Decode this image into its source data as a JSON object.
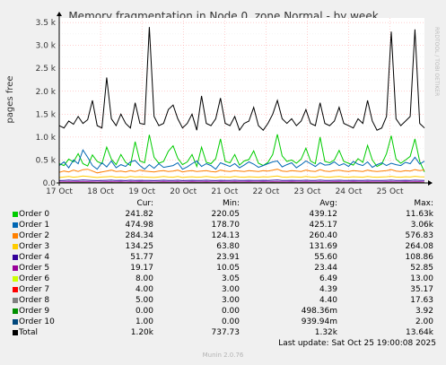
{
  "chart_data": {
    "type": "line",
    "title": "Memory fragmentation in Node 0, zone Normal - by week",
    "ylabel": "pages free",
    "xlabel": "",
    "side_label": "RRDTOOL / TOBI OETIKER",
    "ylim": [
      0,
      3600
    ],
    "yticks": [
      0,
      500,
      1000,
      1500,
      2000,
      2500,
      3000,
      3500
    ],
    "ytick_labels": [
      "0.0",
      "0.5 k",
      "1.0 k",
      "1.5 k",
      "2.0 k",
      "2.5 k",
      "3.0 k",
      "3.5 k"
    ],
    "x_range": [
      "2025-10-17 00:00",
      "2025-10-25 20:00"
    ],
    "xtick_labels": [
      "17 Oct",
      "18 Oct",
      "19 Oct",
      "20 Oct",
      "21 Oct",
      "22 Oct",
      "23 Oct",
      "24 Oct",
      "25 Oct"
    ],
    "grid": true,
    "legend_placement": "bottom",
    "legend_headers": [
      "Cur:",
      "Min:",
      "Avg:",
      "Max:"
    ],
    "series": [
      {
        "name": "Order 0",
        "color": "#00cc00",
        "cur": "241.82",
        "min": "220.05",
        "avg": "439.12",
        "max": "11.63k",
        "values": [
          420,
          380,
          520,
          460,
          640,
          420,
          370,
          610,
          470,
          420,
          780,
          520,
          400,
          620,
          450,
          380,
          900,
          480,
          440,
          1050,
          560,
          430,
          470,
          690,
          810,
          540,
          400,
          460,
          620,
          360,
          780,
          450,
          420,
          530,
          960,
          470,
          440,
          620,
          390,
          480,
          510,
          700,
          430,
          380,
          450,
          620,
          1060,
          590,
          470,
          500,
          430,
          520,
          760,
          480,
          420,
          1000,
          470,
          440,
          500,
          710,
          470,
          430,
          390,
          530,
          450,
          820,
          500,
          360,
          410,
          640,
          1030,
          520,
          430,
          500,
          580,
          960,
          470,
          240
        ]
      },
      {
        "name": "Order 1",
        "color": "#0066b3",
        "cur": "474.98",
        "min": "178.70",
        "avg": "425.17",
        "max": "3.06k",
        "values": [
          380,
          460,
          330,
          500,
          420,
          720,
          560,
          380,
          300,
          440,
          350,
          480,
          330,
          400,
          360,
          460,
          490,
          380,
          300,
          400,
          320,
          420,
          340,
          360,
          380,
          440,
          300,
          350,
          420,
          480,
          360,
          420,
          380,
          300,
          440,
          400,
          360,
          420,
          330,
          390,
          460,
          410,
          340,
          380,
          420,
          460,
          480,
          350,
          400,
          440,
          330,
          400,
          480,
          420,
          360,
          440,
          390,
          400,
          460,
          380,
          420,
          360,
          470,
          410,
          380,
          460,
          340,
          400,
          440,
          380,
          430,
          400,
          380,
          450,
          420,
          560,
          410,
          475
        ]
      },
      {
        "name": "Order 2",
        "color": "#ff8000",
        "cur": "284.34",
        "min": "124.13",
        "avg": "260.40",
        "max": "576.83",
        "values": [
          230,
          260,
          240,
          280,
          250,
          290,
          300,
          260,
          220,
          240,
          260,
          280,
          250,
          260,
          240,
          270,
          250,
          280,
          260,
          250,
          240,
          260,
          270,
          250,
          260,
          280,
          240,
          260,
          270,
          250,
          260,
          270,
          250,
          240,
          280,
          260,
          250,
          270,
          260,
          250,
          270,
          260,
          250,
          270,
          260,
          280,
          300,
          260,
          250,
          270,
          260,
          250,
          280,
          260,
          250,
          290,
          260,
          250,
          270,
          280,
          260,
          250,
          270,
          260,
          250,
          280,
          260,
          250,
          260,
          270,
          290,
          260,
          250,
          270,
          260,
          290,
          270,
          284
        ]
      },
      {
        "name": "Order 3",
        "color": "#ffcc00",
        "cur": "134.25",
        "min": "63.80",
        "avg": "131.69",
        "max": "264.08",
        "values": [
          120,
          130,
          140,
          125,
          135,
          150,
          140,
          130,
          120,
          130,
          135,
          140,
          125,
          130,
          120,
          140,
          130,
          135,
          130,
          125,
          120,
          130,
          140,
          130,
          125,
          140,
          120,
          130,
          135,
          125,
          130,
          140,
          130,
          120,
          135,
          130,
          125,
          140,
          130,
          125,
          135,
          130,
          125,
          135,
          130,
          140,
          150,
          130,
          125,
          135,
          130,
          125,
          140,
          130,
          125,
          145,
          130,
          125,
          135,
          140,
          130,
          125,
          135,
          130,
          125,
          140,
          130,
          125,
          130,
          135,
          145,
          130,
          125,
          135,
          130,
          145,
          135,
          134
        ]
      },
      {
        "name": "Order 4",
        "color": "#330099",
        "cur": "51.77",
        "min": "23.91",
        "avg": "55.60",
        "max": "108.86",
        "values": [
          50,
          55,
          60,
          52,
          56,
          62,
          58,
          54,
          50,
          55,
          57,
          60,
          52,
          56,
          50,
          58,
          54,
          56,
          55,
          52,
          50,
          55,
          58,
          54,
          52,
          58,
          50,
          54,
          56,
          52,
          55,
          58,
          54,
          50,
          56,
          55,
          52,
          58,
          55,
          52,
          56,
          55,
          52,
          56,
          55,
          58,
          62,
          55,
          52,
          56,
          55,
          52,
          58,
          55,
          52,
          60,
          55,
          52,
          56,
          58,
          55,
          52,
          56,
          55,
          52,
          58,
          55,
          52,
          55,
          56,
          60,
          55,
          52,
          56,
          55,
          60,
          56,
          52
        ]
      },
      {
        "name": "Order 5",
        "color": "#990099",
        "cur": "19.17",
        "min": "10.05",
        "avg": "23.44",
        "max": "52.85",
        "values": [
          20,
          22,
          24,
          21,
          23,
          26,
          24,
          22,
          20,
          22,
          23,
          25,
          21,
          23,
          20,
          24,
          22,
          23,
          22,
          21,
          20,
          22,
          24,
          22,
          21,
          24,
          20,
          22,
          23,
          21,
          22,
          24,
          22,
          20,
          23,
          22,
          21,
          24,
          22,
          21,
          23,
          22,
          21,
          23,
          22,
          24,
          26,
          22,
          21,
          23,
          22,
          21,
          24,
          22,
          21,
          25,
          22,
          21,
          23,
          24,
          22,
          21,
          23,
          22,
          21,
          24,
          22,
          21,
          22,
          23,
          25,
          22,
          21,
          23,
          22,
          25,
          23,
          19
        ]
      },
      {
        "name": "Order 6",
        "color": "#ccff00",
        "cur": "8.00",
        "min": "3.05",
        "avg": "6.49",
        "max": "13.00",
        "values": [
          6,
          7,
          6,
          7,
          6,
          8,
          7,
          6,
          6,
          7,
          6,
          7,
          6,
          7,
          6,
          7,
          6,
          7,
          6,
          6,
          6,
          7,
          7,
          6,
          6,
          7,
          6,
          6,
          7,
          6,
          6,
          7,
          6,
          6,
          7,
          6,
          6,
          7,
          6,
          6,
          7,
          6,
          6,
          7,
          6,
          7,
          8,
          6,
          6,
          7,
          6,
          6,
          7,
          6,
          6,
          7,
          6,
          6,
          7,
          7,
          6,
          6,
          7,
          6,
          6,
          7,
          6,
          6,
          6,
          7,
          7,
          6,
          6,
          7,
          6,
          7,
          7,
          8
        ]
      },
      {
        "name": "Order 7",
        "color": "#ff0000",
        "cur": "4.00",
        "min": "3.00",
        "avg": "4.39",
        "max": "35.17",
        "values": [
          4,
          4,
          5,
          4,
          4,
          5,
          4,
          4,
          4,
          4,
          5,
          4,
          4,
          4,
          4,
          5,
          4,
          4,
          4,
          4,
          4,
          4,
          5,
          4,
          4,
          5,
          4,
          4,
          4,
          4,
          4,
          5,
          4,
          4,
          4,
          4,
          4,
          5,
          4,
          4,
          4,
          4,
          4,
          5,
          4,
          4,
          5,
          4,
          4,
          4,
          4,
          4,
          5,
          4,
          4,
          5,
          4,
          4,
          4,
          5,
          4,
          4,
          4,
          4,
          4,
          5,
          4,
          4,
          4,
          4,
          5,
          4,
          4,
          4,
          4,
          5,
          4,
          4
        ]
      },
      {
        "name": "Order 8",
        "color": "#808080",
        "cur": "5.00",
        "min": "3.00",
        "avg": "4.40",
        "max": "17.63",
        "values": [
          4,
          4,
          5,
          4,
          4,
          5,
          4,
          4,
          4,
          4,
          5,
          4,
          4,
          4,
          4,
          5,
          4,
          4,
          4,
          4,
          4,
          4,
          5,
          4,
          4,
          5,
          4,
          4,
          4,
          4,
          4,
          5,
          4,
          4,
          4,
          4,
          4,
          5,
          4,
          4,
          4,
          4,
          4,
          5,
          4,
          4,
          5,
          4,
          4,
          4,
          4,
          4,
          5,
          4,
          4,
          5,
          4,
          4,
          4,
          5,
          4,
          4,
          4,
          4,
          4,
          5,
          4,
          4,
          4,
          4,
          5,
          4,
          4,
          4,
          4,
          5,
          4,
          5
        ]
      },
      {
        "name": "Order 9",
        "color": "#008f00",
        "cur": "0.00",
        "min": "0.00",
        "avg": "498.36m",
        "max": "3.92",
        "values": [
          0,
          1,
          0,
          1,
          0,
          1,
          0,
          1,
          0,
          1,
          0,
          1,
          0,
          1,
          0,
          1,
          0,
          1,
          0,
          1,
          0,
          1,
          0,
          1,
          0,
          1,
          0,
          1,
          0,
          1,
          0,
          1,
          0,
          1,
          0,
          1,
          0,
          1,
          0,
          1,
          0,
          1,
          0,
          1,
          0,
          1,
          0,
          1,
          0,
          1,
          0,
          1,
          0,
          1,
          0,
          1,
          0,
          1,
          0,
          1,
          0,
          1,
          0,
          1,
          0,
          1,
          0,
          1,
          0,
          1,
          0,
          1,
          0,
          1,
          0,
          1,
          0,
          0
        ]
      },
      {
        "name": "Order 10",
        "color": "#00487d",
        "cur": "1.00",
        "min": "0.00",
        "avg": "939.94m",
        "max": "2.00",
        "values": [
          1,
          1,
          1,
          1,
          1,
          1,
          1,
          1,
          1,
          1,
          1,
          1,
          1,
          1,
          1,
          1,
          1,
          1,
          1,
          1,
          1,
          1,
          1,
          1,
          1,
          1,
          1,
          1,
          1,
          1,
          1,
          1,
          1,
          1,
          1,
          1,
          1,
          1,
          1,
          1,
          1,
          1,
          1,
          1,
          1,
          1,
          1,
          1,
          1,
          1,
          1,
          1,
          1,
          1,
          1,
          1,
          1,
          1,
          1,
          1,
          1,
          1,
          1,
          1,
          1,
          1,
          1,
          1,
          1,
          1,
          1,
          1,
          1,
          1,
          1,
          1,
          1,
          1
        ]
      },
      {
        "name": "Total",
        "color": "#000000",
        "cur": "1.20k",
        "min": "737.73",
        "avg": "1.32k",
        "max": "13.64k",
        "values": [
          1250,
          1200,
          1350,
          1280,
          1450,
          1300,
          1380,
          1800,
          1250,
          1200,
          2300,
          1400,
          1250,
          1500,
          1300,
          1200,
          1750,
          1300,
          1280,
          3400,
          1450,
          1250,
          1300,
          1600,
          1700,
          1400,
          1200,
          1300,
          1500,
          1150,
          1900,
          1300,
          1250,
          1400,
          1850,
          1300,
          1250,
          1450,
          1150,
          1300,
          1350,
          1650,
          1250,
          1150,
          1300,
          1500,
          1800,
          1400,
          1300,
          1400,
          1250,
          1350,
          1600,
          1300,
          1250,
          1750,
          1300,
          1250,
          1350,
          1650,
          1300,
          1250,
          1200,
          1400,
          1300,
          1800,
          1350,
          1150,
          1200,
          1450,
          3300,
          1400,
          1250,
          1350,
          1450,
          3350,
          1300,
          1200
        ]
      }
    ]
  },
  "footer": {
    "last_update": "Last update: Sat Oct 25 19:00:08 2025",
    "version": "Munin 2.0.76"
  }
}
